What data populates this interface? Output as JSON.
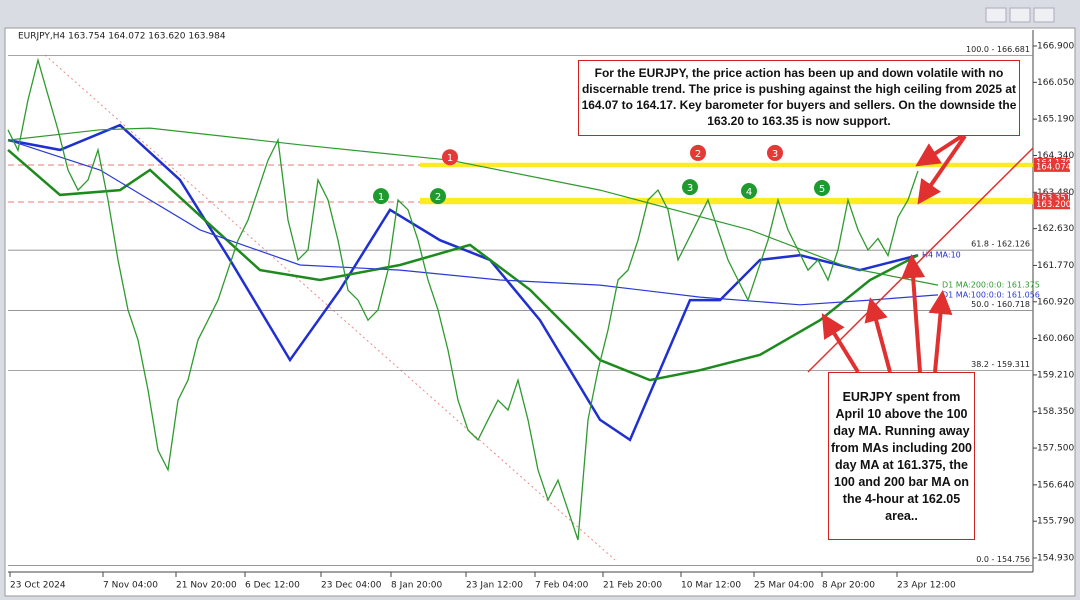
{
  "header": "EURJPY,H4  163.754 164.072 163.620 163.984",
  "chart_data": {
    "type": "line",
    "color": "#2f9a2f",
    "x": [
      0,
      1,
      2,
      3,
      4,
      5,
      6,
      7,
      8,
      9,
      10,
      11,
      12,
      13,
      14,
      15,
      16,
      17,
      18,
      19,
      20,
      21,
      22,
      23,
      24,
      25,
      26,
      27,
      28,
      29,
      30,
      31,
      32,
      33,
      34,
      35,
      36,
      37,
      38,
      39,
      40,
      41,
      42,
      43,
      44,
      45,
      46,
      47,
      48,
      49,
      50,
      51,
      52,
      53,
      54,
      55,
      56,
      57,
      58,
      59,
      60,
      61,
      62,
      63,
      64,
      65,
      66,
      67,
      68,
      69,
      70,
      71,
      72,
      73,
      74,
      75,
      76,
      77,
      78,
      79,
      80,
      81,
      82,
      83,
      84,
      85,
      86,
      87,
      88,
      89,
      90,
      91
    ],
    "values": [
      164.94,
      164.46,
      165.64,
      166.57,
      165.75,
      164.94,
      164.0,
      163.53,
      163.77,
      164.47,
      163.3,
      161.9,
      160.73,
      160.03,
      158.86,
      157.45,
      156.99,
      158.62,
      159.09,
      160.03,
      160.49,
      160.96,
      161.66,
      162.36,
      162.83,
      163.53,
      164.23,
      164.7,
      162.83,
      161.9,
      162.13,
      163.77,
      163.3,
      162.36,
      161.19,
      160.96,
      160.49,
      160.73,
      161.66,
      163.3,
      163.07,
      162.36,
      161.43,
      160.73,
      159.79,
      158.62,
      157.92,
      157.69,
      158.16,
      158.62,
      158.39,
      159.09,
      158.16,
      156.99,
      156.29,
      156.75,
      156.05,
      155.35,
      158.16,
      159.32,
      160.26,
      161.43,
      161.66,
      162.36,
      163.3,
      163.53,
      163.07,
      161.9,
      162.36,
      162.83,
      163.3,
      162.6,
      161.9,
      161.43,
      160.96,
      161.66,
      162.36,
      163.3,
      162.6,
      162.13,
      161.66,
      161.9,
      161.43,
      162.13,
      163.3,
      162.6,
      162.13,
      162.4,
      162.0,
      162.9,
      163.3,
      163.98
    ],
    "xlim": [
      0,
      102.5
    ],
    "xticks": [
      {
        "value": 0.2,
        "label": "23 Oct 2024"
      },
      {
        "value": 9.5,
        "label": "7 Nov 04:00"
      },
      {
        "value": 16.8,
        "label": "21 Nov 20:00"
      },
      {
        "value": 23.7,
        "label": "6 Dec 12:00"
      },
      {
        "value": 31.3,
        "label": "23 Dec 04:00"
      },
      {
        "value": 38.3,
        "label": "8 Jan 20:00"
      },
      {
        "value": 45.8,
        "label": "23 Jan 12:00"
      },
      {
        "value": 52.7,
        "label": "7 Feb 04:00"
      },
      {
        "value": 59.5,
        "label": "21 Feb 20:00"
      },
      {
        "value": 67.3,
        "label": "10 Mar 12:00"
      },
      {
        "value": 74.6,
        "label": "25 Mar 04:00"
      },
      {
        "value": 81.4,
        "label": "8 Apr 20:00"
      },
      {
        "value": 88.9,
        "label": "23 Apr 12:00"
      }
    ],
    "ylim": [
      154.93,
      166.9
    ],
    "yticks": [
      {
        "value": 166.9,
        "label": "166.900"
      },
      {
        "value": 166.05,
        "label": "166.050"
      },
      {
        "value": 165.19,
        "label": "165.190"
      },
      {
        "value": 164.34,
        "label": "164.340"
      },
      {
        "value": 163.48,
        "label": "163.480"
      },
      {
        "value": 162.63,
        "label": "162.630"
      },
      {
        "value": 161.77,
        "label": "161.770"
      },
      {
        "value": 160.92,
        "label": "160.920"
      },
      {
        "value": 160.06,
        "label": "160.060"
      },
      {
        "value": 159.21,
        "label": "159.210"
      },
      {
        "value": 158.35,
        "label": "158.350"
      },
      {
        "value": 157.5,
        "label": "157.500"
      },
      {
        "value": 156.64,
        "label": "156.640"
      },
      {
        "value": 155.79,
        "label": "155.790"
      },
      {
        "value": 154.93,
        "label": "154.930"
      }
    ],
    "moving_averages": [
      {
        "label": "H4 MA:10",
        "color": "#1f2fd0",
        "width": 2.5,
        "x": [
          0,
          5.2,
          11.2,
          17.2,
          22.2,
          28.2,
          33.2,
          38.2,
          43.2,
          48.2,
          53.2,
          59.2,
          62.2,
          68.2,
          71.2,
          75.2,
          79.2,
          85.2,
          91
        ],
        "values": [
          164.7,
          164.47,
          165.05,
          163.77,
          161.9,
          159.56,
          161.2,
          163.07,
          162.36,
          161.9,
          160.49,
          158.16,
          157.69,
          160.96,
          160.96,
          161.9,
          162.01,
          161.66,
          162.01
        ]
      },
      {
        "color": "#1d8a1d",
        "width": 2.5,
        "x": [
          0,
          5.2,
          11.2,
          14.2,
          20.2,
          25.2,
          31.2,
          39.2,
          46.2,
          52.2,
          59.2,
          64.2,
          69.2,
          75.2,
          81.2,
          86.2,
          91
        ],
        "values": [
          164.47,
          163.42,
          163.53,
          164.0,
          162.72,
          161.66,
          161.43,
          161.78,
          162.25,
          161.2,
          159.56,
          159.09,
          159.32,
          159.68,
          160.49,
          161.43,
          162.01
        ]
      },
      {
        "label": "D1 MA:100:0:0: 161.056",
        "color": "#2a3ad8",
        "width": 1.2,
        "x": [
          0,
          9.2,
          19.2,
          29.2,
          39.2,
          49.2,
          59.2,
          69.2,
          79.2,
          86.2,
          93
        ],
        "values": [
          164.7,
          164.0,
          162.6,
          161.78,
          161.66,
          161.43,
          161.31,
          161.03,
          160.85,
          160.96,
          161.08
        ]
      },
      {
        "label": "D1 MA:200:0:0: 161.375",
        "color": "#2e9a2e",
        "width": 1.2,
        "x": [
          0,
          9.2,
          14.2,
          29.2,
          44.2,
          59.2,
          74.2,
          84.2,
          93
        ],
        "values": [
          164.7,
          164.94,
          164.98,
          164.59,
          164.23,
          163.53,
          162.6,
          161.71,
          161.31
        ]
      }
    ],
    "fib_levels": [
      {
        "value": 166.681,
        "label": "100.0 - 166.681"
      },
      {
        "value": 162.126,
        "label": "61.8 - 162.126"
      },
      {
        "value": 160.718,
        "label": "50.0 - 160.718"
      },
      {
        "value": 159.311,
        "label": "38.2 - 159.311"
      },
      {
        "value": 154.756,
        "label": "0.0 - 154.756"
      }
    ],
    "zones": [
      [
        164.07,
        164.17
      ],
      [
        163.2,
        163.35
      ]
    ],
    "zone_color": "#ffe600",
    "price_labels": [
      {
        "value": 164.17,
        "label": "164.170"
      },
      {
        "value": 164.074,
        "label": "164.074"
      },
      {
        "value": 163.351,
        "label": "163.351"
      },
      {
        "value": 163.2,
        "label": "163.200"
      }
    ],
    "markers": [
      {
        "label": "1",
        "color": "#e53935",
        "x": 44.2,
        "y": 164.3
      },
      {
        "label": "1",
        "color": "#1e9a2e",
        "x": 37.3,
        "y": 163.39
      },
      {
        "label": "2",
        "color": "#1e9a2e",
        "x": 43,
        "y": 163.39
      },
      {
        "label": "2",
        "color": "#e53935",
        "x": 69,
        "y": 164.4
      },
      {
        "label": "3",
        "color": "#e53935",
        "x": 76.7,
        "y": 164.4
      },
      {
        "label": "3",
        "color": "#1e9a2e",
        "x": 68.2,
        "y": 163.6
      },
      {
        "label": "4",
        "color": "#1e9a2e",
        "x": 74.1,
        "y": 163.51
      },
      {
        "label": "5",
        "color": "#1e9a2e",
        "x": 81.4,
        "y": 163.58
      }
    ],
    "annotations": [
      "For the EURJPY, the price action has been up and down volatile with no discernable trend. The price is pushing against the high ceiling from 2025 at 164.07 to 164.17.  Key barometer for buyers and sellers. On the downside the 163.20 to 163.35 is now support.",
      "EURJPY spent from April 10 above the 100 day MA. Running away from MAs including 200 day MA at 161.375, the 100 and 200 bar MA on the 4-hour at 162.05 area.."
    ]
  }
}
